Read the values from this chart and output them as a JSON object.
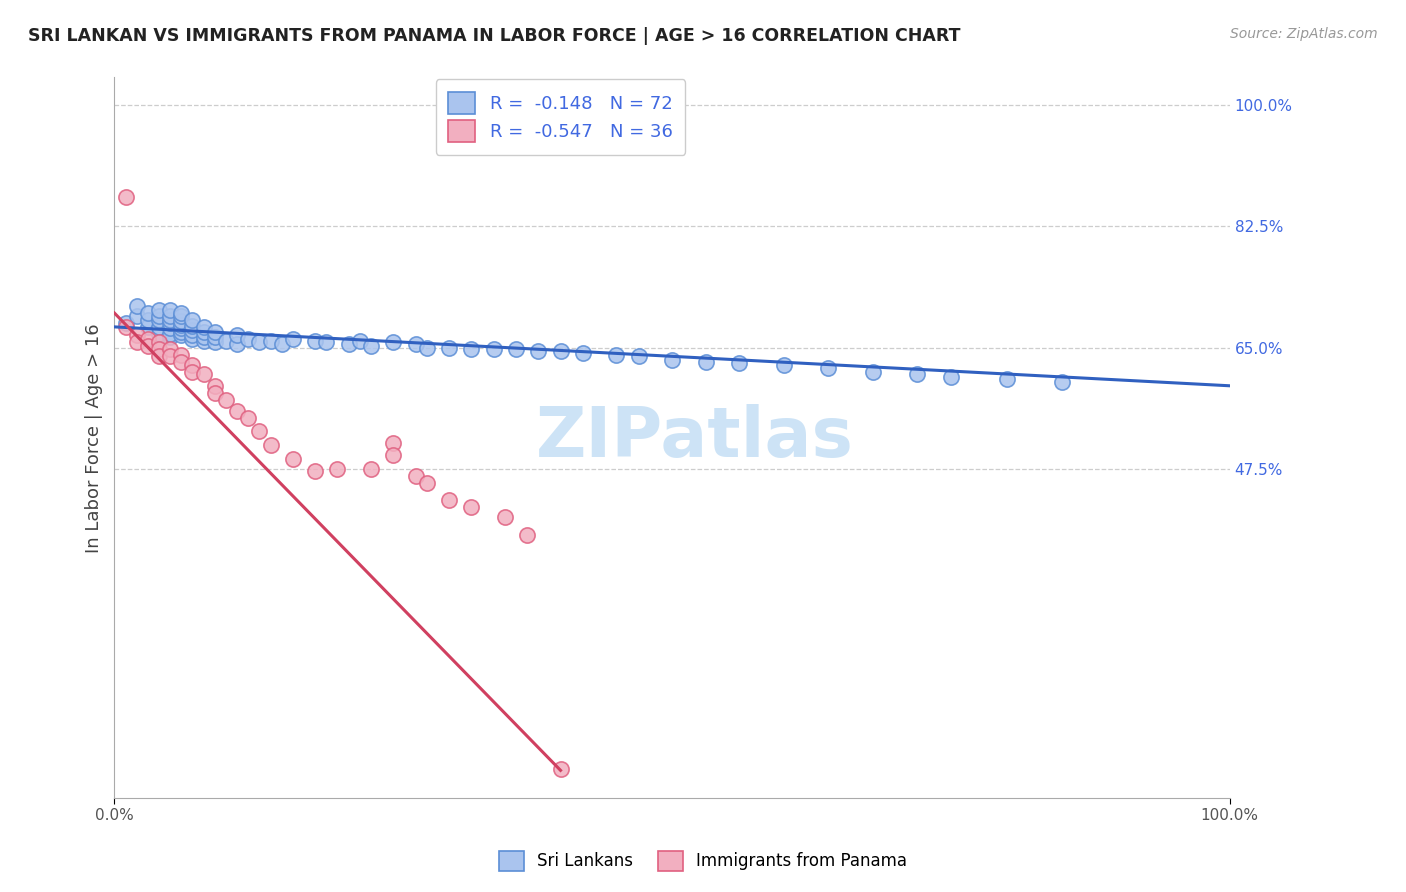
{
  "title": "SRI LANKAN VS IMMIGRANTS FROM PANAMA IN LABOR FORCE | AGE > 16 CORRELATION CHART",
  "source": "Source: ZipAtlas.com",
  "ylabel": "In Labor Force | Age > 16",
  "xlim": [
    0.0,
    1.0
  ],
  "ylim": [
    0.0,
    1.0
  ],
  "y_tick_labels": [
    "47.5%",
    "65.0%",
    "82.5%",
    "100.0%"
  ],
  "y_tick_values": [
    0.475,
    0.65,
    0.825,
    1.0
  ],
  "bg_color": "#ffffff",
  "grid_color": "#c8c8c8",
  "legend_r1": "R =  -0.148   N = 72",
  "legend_r2": "R =  -0.547   N = 36",
  "sri_lanka_color": "#aac4ee",
  "panama_color": "#f2afc0",
  "sri_lanka_edge_color": "#5b8ed6",
  "panama_edge_color": "#e06080",
  "sri_lanka_line_color": "#3060c0",
  "panama_line_color": "#d04060",
  "sri_lanka_scatter_x": [
    0.01,
    0.02,
    0.02,
    0.03,
    0.03,
    0.03,
    0.04,
    0.04,
    0.04,
    0.04,
    0.04,
    0.05,
    0.05,
    0.05,
    0.05,
    0.05,
    0.05,
    0.05,
    0.06,
    0.06,
    0.06,
    0.06,
    0.06,
    0.06,
    0.06,
    0.07,
    0.07,
    0.07,
    0.07,
    0.07,
    0.08,
    0.08,
    0.08,
    0.08,
    0.09,
    0.09,
    0.09,
    0.1,
    0.11,
    0.11,
    0.12,
    0.13,
    0.14,
    0.15,
    0.16,
    0.18,
    0.19,
    0.21,
    0.22,
    0.23,
    0.25,
    0.27,
    0.28,
    0.3,
    0.32,
    0.34,
    0.36,
    0.38,
    0.4,
    0.42,
    0.45,
    0.47,
    0.5,
    0.53,
    0.56,
    0.6,
    0.64,
    0.68,
    0.72,
    0.75,
    0.8,
    0.85
  ],
  "sri_lanka_scatter_y": [
    0.685,
    0.695,
    0.71,
    0.68,
    0.69,
    0.7,
    0.67,
    0.68,
    0.69,
    0.695,
    0.705,
    0.665,
    0.67,
    0.678,
    0.685,
    0.69,
    0.695,
    0.705,
    0.668,
    0.672,
    0.678,
    0.683,
    0.688,
    0.695,
    0.7,
    0.662,
    0.668,
    0.675,
    0.682,
    0.69,
    0.66,
    0.666,
    0.672,
    0.68,
    0.658,
    0.665,
    0.672,
    0.66,
    0.655,
    0.668,
    0.662,
    0.658,
    0.66,
    0.655,
    0.662,
    0.66,
    0.658,
    0.655,
    0.66,
    0.652,
    0.658,
    0.655,
    0.65,
    0.65,
    0.648,
    0.648,
    0.648,
    0.645,
    0.645,
    0.642,
    0.64,
    0.638,
    0.632,
    0.63,
    0.628,
    0.625,
    0.62,
    0.615,
    0.612,
    0.608,
    0.605,
    0.6
  ],
  "panama_scatter_x": [
    0.01,
    0.01,
    0.02,
    0.02,
    0.03,
    0.03,
    0.04,
    0.04,
    0.04,
    0.05,
    0.05,
    0.06,
    0.06,
    0.07,
    0.07,
    0.08,
    0.09,
    0.09,
    0.1,
    0.11,
    0.12,
    0.13,
    0.14,
    0.16,
    0.18,
    0.2,
    0.23,
    0.25,
    0.25,
    0.27,
    0.28,
    0.3,
    0.32,
    0.35,
    0.37,
    0.4
  ],
  "panama_scatter_y": [
    0.868,
    0.68,
    0.668,
    0.658,
    0.662,
    0.652,
    0.658,
    0.648,
    0.638,
    0.648,
    0.638,
    0.64,
    0.63,
    0.625,
    0.615,
    0.612,
    0.595,
    0.585,
    0.575,
    0.558,
    0.548,
    0.53,
    0.51,
    0.49,
    0.472,
    0.475,
    0.475,
    0.512,
    0.495,
    0.465,
    0.455,
    0.43,
    0.42,
    0.405,
    0.38,
    0.042
  ],
  "sri_lanka_trend": {
    "x_start": 0.0,
    "y_start": 0.68,
    "x_end": 1.0,
    "y_end": 0.595
  },
  "panama_trend": {
    "x_start": 0.0,
    "y_start": 0.7,
    "x_end": 0.4,
    "y_end": 0.04
  }
}
